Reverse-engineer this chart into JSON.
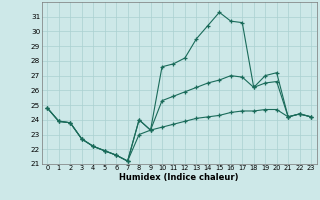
{
  "xlabel": "Humidex (Indice chaleur)",
  "background_color": "#cde8e8",
  "grid_color": "#aad0d0",
  "line_color": "#1a6b5a",
  "x": [
    0,
    1,
    2,
    3,
    4,
    5,
    6,
    7,
    8,
    9,
    10,
    11,
    12,
    13,
    14,
    15,
    16,
    17,
    18,
    19,
    20,
    21,
    22,
    23
  ],
  "line1": [
    24.8,
    23.9,
    23.8,
    22.7,
    22.2,
    21.9,
    21.6,
    21.2,
    24.0,
    23.3,
    27.6,
    27.8,
    28.2,
    29.5,
    30.4,
    31.3,
    30.7,
    30.6,
    26.2,
    27.0,
    27.2,
    24.2,
    24.4,
    24.2
  ],
  "line2": [
    24.8,
    23.9,
    23.8,
    22.7,
    22.2,
    21.9,
    21.6,
    21.2,
    24.0,
    23.3,
    25.3,
    25.6,
    25.9,
    26.2,
    26.5,
    26.7,
    27.0,
    26.9,
    26.2,
    26.5,
    26.6,
    24.2,
    24.4,
    24.2
  ],
  "line3": [
    24.8,
    23.9,
    23.8,
    22.7,
    22.2,
    21.9,
    21.6,
    21.2,
    23.0,
    23.3,
    23.5,
    23.7,
    23.9,
    24.1,
    24.2,
    24.3,
    24.5,
    24.6,
    24.6,
    24.7,
    24.7,
    24.2,
    24.4,
    24.2
  ],
  "ylim": [
    21,
    32
  ],
  "xlim": [
    -0.5,
    23.5
  ],
  "yticks": [
    21,
    22,
    23,
    24,
    25,
    26,
    27,
    28,
    29,
    30,
    31
  ],
  "xticks": [
    0,
    1,
    2,
    3,
    4,
    5,
    6,
    7,
    8,
    9,
    10,
    11,
    12,
    13,
    14,
    15,
    16,
    17,
    18,
    19,
    20,
    21,
    22,
    23
  ]
}
